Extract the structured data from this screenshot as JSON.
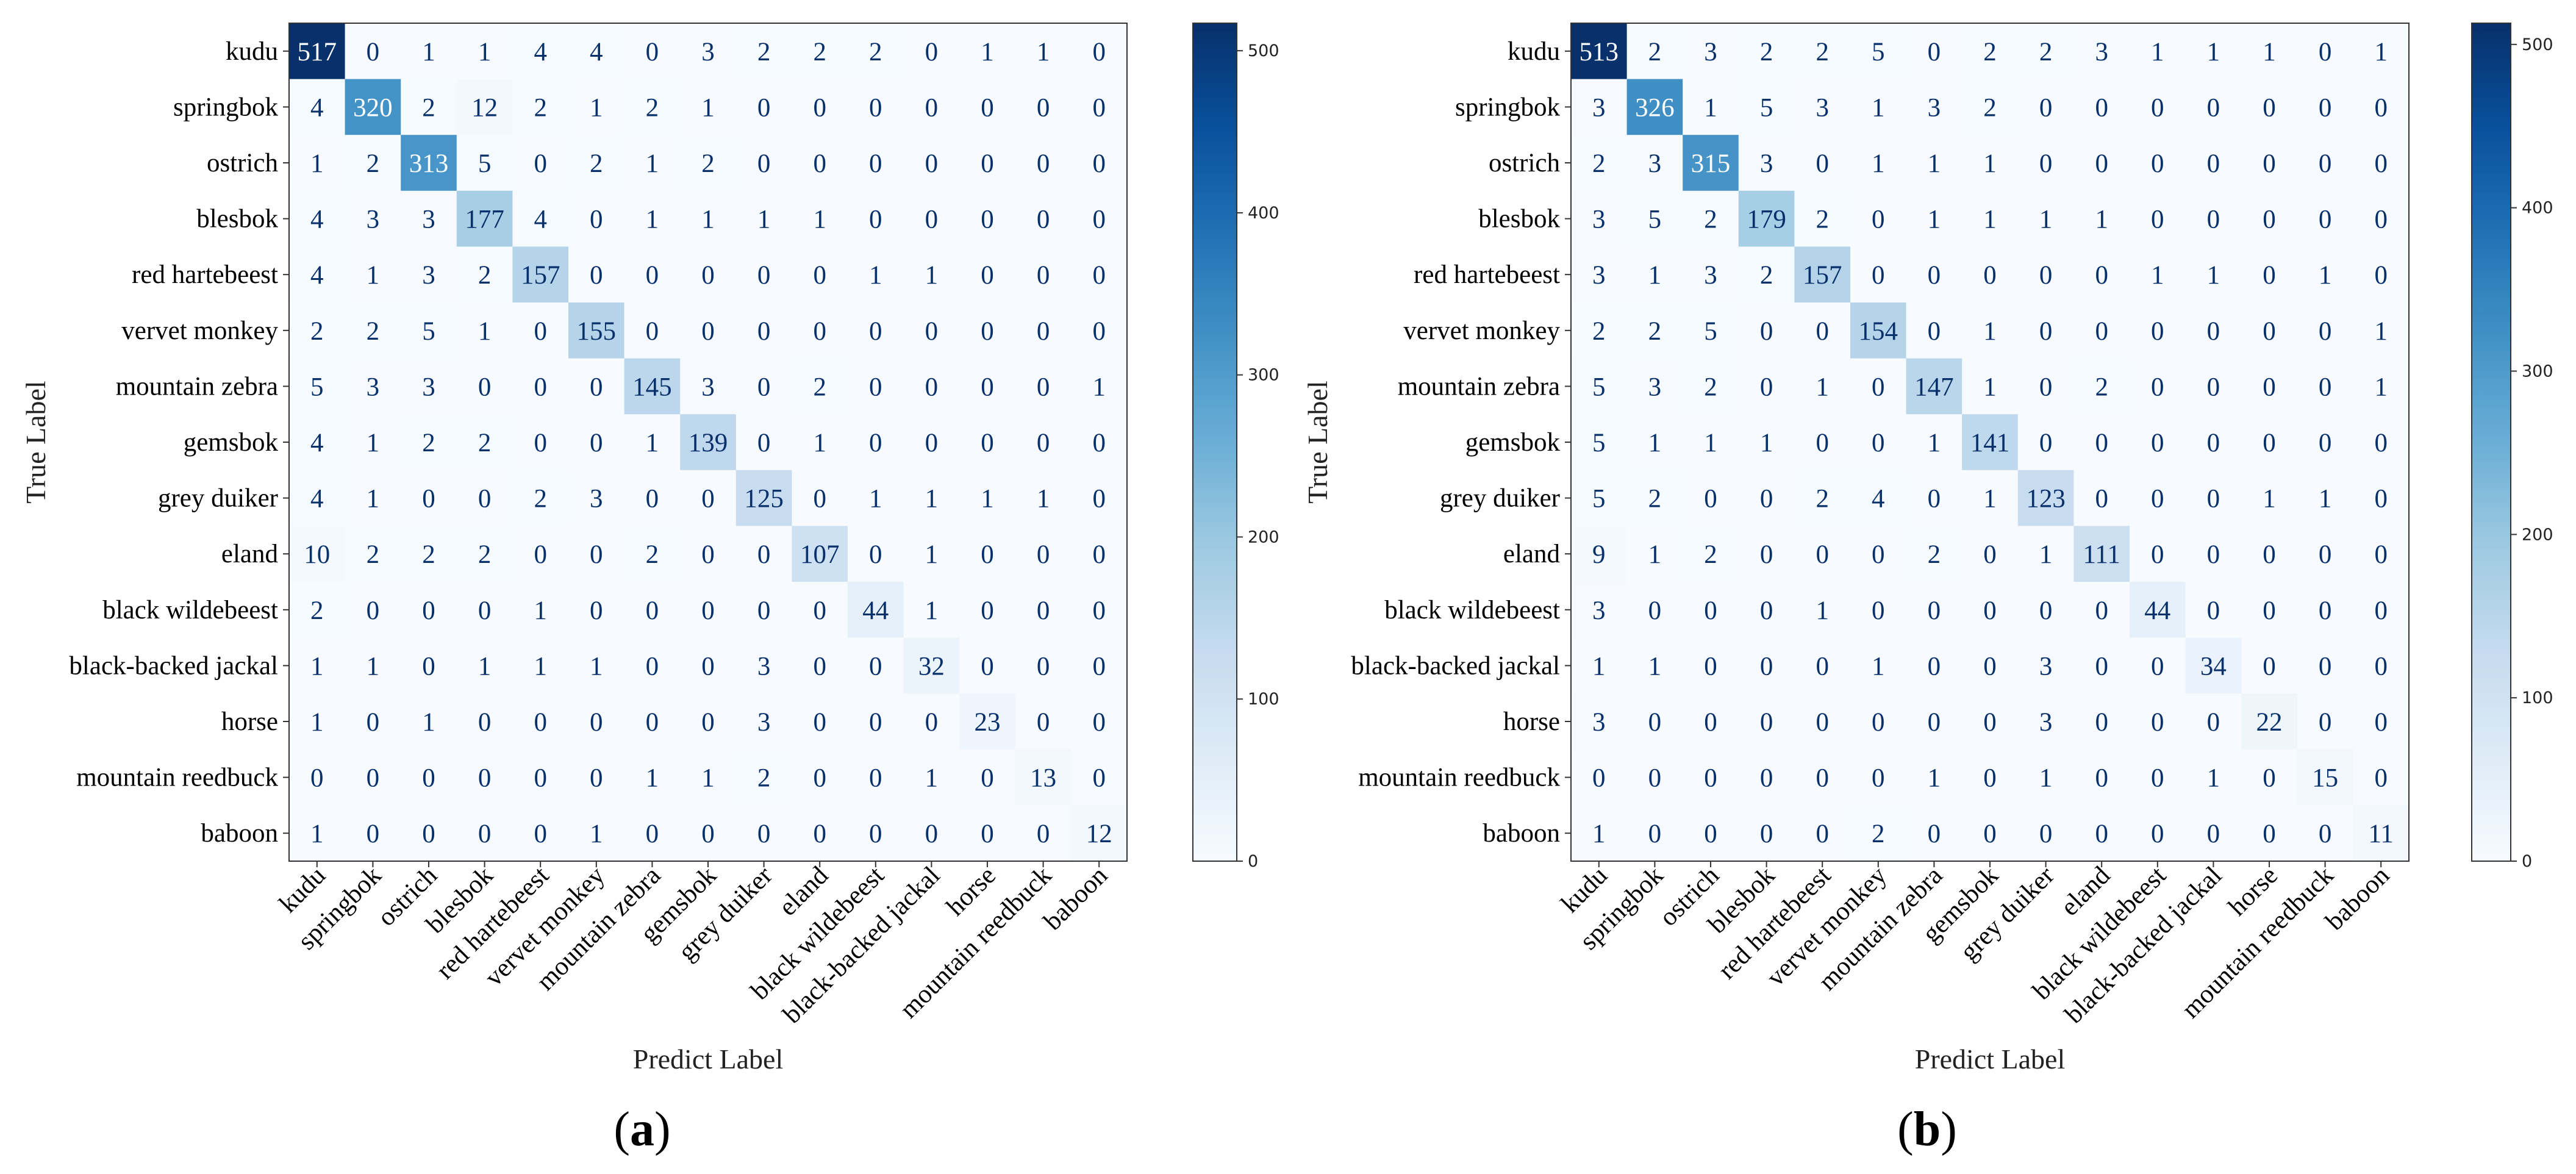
{
  "chart_data": [
    {
      "type": "heatmap",
      "panel_label": "a",
      "xlabel": "Predict Label",
      "ylabel": "True Label",
      "labels": [
        "kudu",
        "springbok",
        "ostrich",
        "blesbok",
        "red hartebeest",
        "vervet monkey",
        "mountain zebra",
        "gemsbok",
        "grey duiker",
        "eland",
        "black wildebeest",
        "black-backed jackal",
        "horse",
        "mountain reedbuck",
        "baboon"
      ],
      "matrix": [
        [
          517,
          0,
          1,
          1,
          4,
          4,
          0,
          3,
          2,
          2,
          2,
          0,
          1,
          1,
          0
        ],
        [
          4,
          320,
          2,
          12,
          2,
          1,
          2,
          1,
          0,
          0,
          0,
          0,
          0,
          0,
          0
        ],
        [
          1,
          2,
          313,
          5,
          0,
          2,
          1,
          2,
          0,
          0,
          0,
          0,
          0,
          0,
          0
        ],
        [
          4,
          3,
          3,
          177,
          4,
          0,
          1,
          1,
          1,
          1,
          0,
          0,
          0,
          0,
          0
        ],
        [
          4,
          1,
          3,
          2,
          157,
          0,
          0,
          0,
          0,
          0,
          1,
          1,
          0,
          0,
          0
        ],
        [
          2,
          2,
          5,
          1,
          0,
          155,
          0,
          0,
          0,
          0,
          0,
          0,
          0,
          0,
          0
        ],
        [
          5,
          3,
          3,
          0,
          0,
          0,
          145,
          3,
          0,
          2,
          0,
          0,
          0,
          0,
          1
        ],
        [
          4,
          1,
          2,
          2,
          0,
          0,
          1,
          139,
          0,
          1,
          0,
          0,
          0,
          0,
          0
        ],
        [
          4,
          1,
          0,
          0,
          2,
          3,
          0,
          0,
          125,
          0,
          1,
          1,
          1,
          1,
          0
        ],
        [
          10,
          2,
          2,
          2,
          0,
          0,
          2,
          0,
          0,
          107,
          0,
          1,
          0,
          0,
          0
        ],
        [
          2,
          0,
          0,
          0,
          1,
          0,
          0,
          0,
          0,
          0,
          44,
          1,
          0,
          0,
          0
        ],
        [
          1,
          1,
          0,
          1,
          1,
          1,
          0,
          0,
          3,
          0,
          0,
          32,
          0,
          0,
          0
        ],
        [
          1,
          0,
          1,
          0,
          0,
          0,
          0,
          0,
          3,
          0,
          0,
          0,
          23,
          0,
          0
        ],
        [
          0,
          0,
          0,
          0,
          0,
          0,
          1,
          1,
          2,
          0,
          0,
          1,
          0,
          13,
          0
        ],
        [
          1,
          0,
          0,
          0,
          0,
          1,
          0,
          0,
          0,
          0,
          0,
          0,
          0,
          0,
          12
        ]
      ],
      "vmin": 0,
      "vmax": 517,
      "colorbar_ticks": [
        0,
        100,
        200,
        300,
        400,
        500
      ],
      "colormap": "Blues"
    },
    {
      "type": "heatmap",
      "panel_label": "b",
      "xlabel": "Predict Label",
      "ylabel": "True Label",
      "labels": [
        "kudu",
        "springbok",
        "ostrich",
        "blesbok",
        "red hartebeest",
        "vervet monkey",
        "mountain zebra",
        "gemsbok",
        "grey duiker",
        "eland",
        "black wildebeest",
        "black-backed jackal",
        "horse",
        "mountain reedbuck",
        "baboon"
      ],
      "matrix": [
        [
          513,
          2,
          3,
          2,
          2,
          5,
          0,
          2,
          2,
          3,
          1,
          1,
          1,
          0,
          1
        ],
        [
          3,
          326,
          1,
          5,
          3,
          1,
          3,
          2,
          0,
          0,
          0,
          0,
          0,
          0,
          0
        ],
        [
          2,
          3,
          315,
          3,
          0,
          1,
          1,
          1,
          0,
          0,
          0,
          0,
          0,
          0,
          0
        ],
        [
          3,
          5,
          2,
          179,
          2,
          0,
          1,
          1,
          1,
          1,
          0,
          0,
          0,
          0,
          0
        ],
        [
          3,
          1,
          3,
          2,
          157,
          0,
          0,
          0,
          0,
          0,
          1,
          1,
          0,
          1,
          0
        ],
        [
          2,
          2,
          5,
          0,
          0,
          154,
          0,
          1,
          0,
          0,
          0,
          0,
          0,
          0,
          1
        ],
        [
          5,
          3,
          2,
          0,
          1,
          0,
          147,
          1,
          0,
          2,
          0,
          0,
          0,
          0,
          1
        ],
        [
          5,
          1,
          1,
          1,
          0,
          0,
          1,
          141,
          0,
          0,
          0,
          0,
          0,
          0,
          0
        ],
        [
          5,
          2,
          0,
          0,
          2,
          4,
          0,
          1,
          123,
          0,
          0,
          0,
          1,
          1,
          0
        ],
        [
          9,
          1,
          2,
          0,
          0,
          0,
          2,
          0,
          1,
          111,
          0,
          0,
          0,
          0,
          0
        ],
        [
          3,
          0,
          0,
          0,
          1,
          0,
          0,
          0,
          0,
          0,
          44,
          0,
          0,
          0,
          0
        ],
        [
          1,
          1,
          0,
          0,
          0,
          1,
          0,
          0,
          3,
          0,
          0,
          34,
          0,
          0,
          0
        ],
        [
          3,
          0,
          0,
          0,
          0,
          0,
          0,
          0,
          3,
          0,
          0,
          0,
          22,
          0,
          0
        ],
        [
          0,
          0,
          0,
          0,
          0,
          0,
          1,
          0,
          1,
          0,
          0,
          1,
          0,
          15,
          0
        ],
        [
          1,
          0,
          0,
          0,
          0,
          2,
          0,
          0,
          0,
          0,
          0,
          0,
          0,
          0,
          11
        ]
      ],
      "vmin": 0,
      "vmax": 513,
      "colorbar_ticks": [
        0,
        100,
        200,
        300,
        400,
        500
      ],
      "colormap": "Blues"
    }
  ]
}
